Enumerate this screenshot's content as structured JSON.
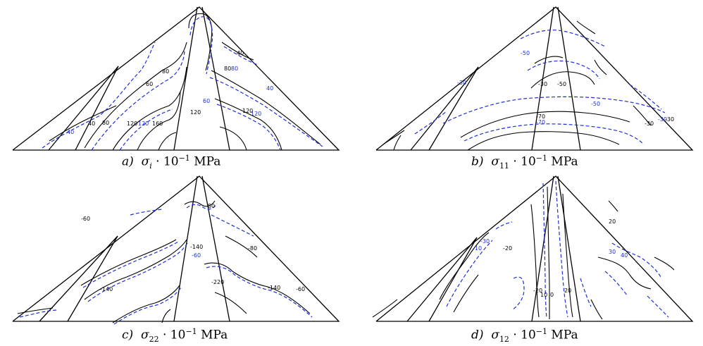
{
  "panels": [
    {
      "id": "a",
      "caption": {
        "label": "a)",
        "symbol": "σ",
        "sub": "i",
        "text": "· 10",
        "exp": "−1",
        "unit": "MPa"
      },
      "contour_labels": [
        {
          "t": "40",
          "c": "u"
        },
        {
          "t": "40",
          "c": "b"
        },
        {
          "t": "80",
          "c": "b"
        },
        {
          "t": "60",
          "c": "b"
        },
        {
          "t": "80",
          "c": "b"
        },
        {
          "t": "120",
          "c": "b"
        },
        {
          "t": "120",
          "c": "u"
        },
        {
          "t": "160",
          "c": "b"
        },
        {
          "t": "120",
          "c": "b"
        },
        {
          "t": "60",
          "c": "u"
        },
        {
          "t": "80",
          "c": "b"
        },
        {
          "t": "80",
          "c": "u"
        },
        {
          "t": "40",
          "c": "b"
        },
        {
          "t": "40",
          "c": "u"
        },
        {
          "t": "120",
          "c": "b"
        },
        {
          "t": "120",
          "c": "u"
        }
      ]
    },
    {
      "id": "b",
      "caption": {
        "label": "b)",
        "symbol": "σ",
        "sub": "11",
        "text": "· 10",
        "exp": "−1",
        "unit": "MPa"
      },
      "contour_labels": [
        {
          "t": "-30",
          "c": "u"
        },
        {
          "t": "-50",
          "c": "u"
        },
        {
          "t": "-30",
          "c": "b"
        },
        {
          "t": "-50",
          "c": "b"
        },
        {
          "t": "-50",
          "c": "u"
        },
        {
          "t": "-30",
          "c": "b"
        },
        {
          "t": "-70",
          "c": "u"
        },
        {
          "t": "-70",
          "c": "b"
        },
        {
          "t": "-30",
          "c": "u"
        },
        {
          "t": "-30",
          "c": "b"
        }
      ]
    },
    {
      "id": "c",
      "caption": {
        "label": "c)",
        "symbol": "σ",
        "sub": "22",
        "text": "· 10",
        "exp": "−1",
        "unit": "MPa"
      },
      "contour_labels": [
        {
          "t": "-60",
          "c": "b"
        },
        {
          "t": "-80",
          "c": "b"
        },
        {
          "t": "-140",
          "c": "b"
        },
        {
          "t": "-140",
          "c": "b"
        },
        {
          "t": "-60",
          "c": "u"
        },
        {
          "t": "-220",
          "c": "b"
        },
        {
          "t": "-140",
          "c": "b"
        },
        {
          "t": "-80",
          "c": "b"
        },
        {
          "t": "-60",
          "c": "b"
        }
      ]
    },
    {
      "id": "d",
      "caption": {
        "label": "d)",
        "symbol": "σ",
        "sub": "12",
        "text": "· 10",
        "exp": "−1",
        "unit": "MPa"
      },
      "contour_labels": [
        {
          "t": "-20",
          "c": "b"
        },
        {
          "t": "-10",
          "c": "u"
        },
        {
          "t": "-30",
          "c": "u"
        },
        {
          "t": "-20",
          "c": "b"
        },
        {
          "t": "10",
          "c": "b"
        },
        {
          "t": "0",
          "c": "b"
        },
        {
          "t": "20",
          "c": "b"
        },
        {
          "t": "20",
          "c": "b"
        },
        {
          "t": "30",
          "c": "u"
        },
        {
          "t": "40",
          "c": "u"
        }
      ]
    }
  ]
}
